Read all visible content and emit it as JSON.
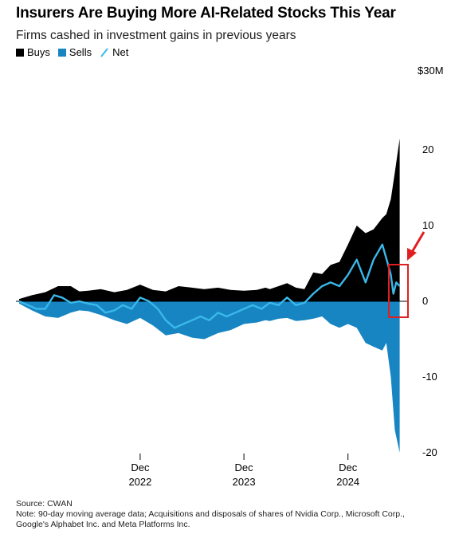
{
  "title": "Insurers Are Buying More AI-Related Stocks This Year",
  "subtitle": "Firms cashed in investment gains in previous years",
  "legend": [
    {
      "name": "Buys",
      "color": "#000000",
      "icon": "square-swatch"
    },
    {
      "name": "Sells",
      "color": "#1785c2",
      "icon": "square-swatch"
    },
    {
      "name": "Net",
      "color": "#3ab8ea",
      "icon": "slash-line"
    }
  ],
  "source": "Source: CWAN",
  "note": "Note: 90-day moving average data; Acquisitions and disposals of shares of Nvidia Corp., Microsoft Corp., Google's Alphabet Inc. and Meta Platforms Inc.",
  "chart_data": {
    "type": "area",
    "unit_label": "$30M",
    "ylim": [
      -21,
      30
    ],
    "yticks": [
      20,
      10,
      0,
      -10,
      -20
    ],
    "ytick_labels": [
      "20",
      "10",
      "0",
      "-10",
      "-20"
    ],
    "xlim": [
      "2021-10-01",
      "2025-06-05"
    ],
    "xticks": [
      {
        "date": "2022-12-01",
        "month": "Dec",
        "year": "2022"
      },
      {
        "date": "2023-12-01",
        "month": "Dec",
        "year": "2023"
      },
      {
        "date": "2024-12-01",
        "month": "Dec",
        "year": "2024"
      }
    ],
    "grid": false,
    "legend_position": "top-left",
    "series": [
      {
        "name": "Buys",
        "color": "#000000",
        "dates": [
          "2021-10-01",
          "2021-11-15",
          "2022-01-01",
          "2022-02-15",
          "2022-04-01",
          "2022-05-01",
          "2022-06-01",
          "2022-07-15",
          "2022-09-01",
          "2022-10-15",
          "2022-12-01",
          "2023-01-15",
          "2023-03-01",
          "2023-04-15",
          "2023-06-01",
          "2023-07-15",
          "2023-09-01",
          "2023-10-15",
          "2023-12-01",
          "2024-01-15",
          "2024-02-15",
          "2024-03-01",
          "2024-04-01",
          "2024-05-01",
          "2024-06-01",
          "2024-07-01",
          "2024-08-01",
          "2024-09-01",
          "2024-10-01",
          "2024-11-01",
          "2024-12-01",
          "2025-01-01",
          "2025-02-01",
          "2025-03-01",
          "2025-04-01",
          "2025-04-15",
          "2025-05-01",
          "2025-05-15",
          "2025-06-01"
        ],
        "values": [
          0.3,
          0.8,
          1.2,
          2.0,
          2.0,
          1.3,
          1.4,
          1.6,
          1.2,
          1.5,
          2.2,
          1.5,
          1.3,
          2.0,
          1.8,
          1.6,
          1.8,
          1.5,
          1.4,
          1.5,
          1.8,
          1.6,
          2.0,
          2.4,
          1.8,
          1.6,
          3.8,
          3.6,
          4.8,
          5.2,
          7.5,
          10.0,
          9.0,
          9.5,
          11.0,
          11.5,
          13.5,
          17.0,
          21.5
        ]
      },
      {
        "name": "Sells",
        "color": "#1785c2",
        "dates": [
          "2021-10-01",
          "2021-11-15",
          "2022-01-01",
          "2022-02-15",
          "2022-04-01",
          "2022-05-01",
          "2022-06-01",
          "2022-07-15",
          "2022-09-01",
          "2022-10-15",
          "2022-12-01",
          "2023-01-15",
          "2023-03-01",
          "2023-04-15",
          "2023-06-01",
          "2023-07-15",
          "2023-09-01",
          "2023-10-15",
          "2023-12-01",
          "2024-01-15",
          "2024-02-15",
          "2024-03-01",
          "2024-04-01",
          "2024-05-01",
          "2024-06-01",
          "2024-07-01",
          "2024-08-01",
          "2024-09-01",
          "2024-10-01",
          "2024-11-01",
          "2024-12-01",
          "2025-01-01",
          "2025-02-01",
          "2025-03-01",
          "2025-04-01",
          "2025-04-15",
          "2025-05-01",
          "2025-05-15",
          "2025-06-01"
        ],
        "values": [
          -0.3,
          -1.2,
          -2.0,
          -2.2,
          -1.5,
          -1.2,
          -1.3,
          -1.8,
          -2.5,
          -3.0,
          -2.2,
          -3.2,
          -4.5,
          -4.2,
          -4.8,
          -5.0,
          -4.2,
          -3.8,
          -3.0,
          -2.8,
          -2.5,
          -2.6,
          -2.3,
          -2.2,
          -2.6,
          -2.5,
          -2.3,
          -2.0,
          -3.0,
          -3.5,
          -3.0,
          -3.5,
          -5.5,
          -6.0,
          -6.5,
          -5.5,
          -10.0,
          -17.0,
          -20.0
        ]
      },
      {
        "name": "Net",
        "color": "#3ab8ea",
        "dates": [
          "2021-10-01",
          "2021-11-01",
          "2021-12-01",
          "2022-01-01",
          "2022-02-01",
          "2022-03-01",
          "2022-04-01",
          "2022-05-01",
          "2022-06-01",
          "2022-07-01",
          "2022-08-01",
          "2022-09-01",
          "2022-10-01",
          "2022-11-01",
          "2022-12-01",
          "2023-01-01",
          "2023-02-01",
          "2023-03-01",
          "2023-04-01",
          "2023-05-01",
          "2023-06-01",
          "2023-07-01",
          "2023-08-01",
          "2023-09-01",
          "2023-10-01",
          "2023-11-01",
          "2023-12-01",
          "2024-01-01",
          "2024-02-01",
          "2024-03-01",
          "2024-04-01",
          "2024-05-01",
          "2024-06-01",
          "2024-07-01",
          "2024-08-01",
          "2024-09-01",
          "2024-10-01",
          "2024-11-01",
          "2024-12-01",
          "2025-01-01",
          "2025-02-01",
          "2025-03-01",
          "2025-04-01",
          "2025-04-20",
          "2025-05-01",
          "2025-05-10",
          "2025-05-20",
          "2025-06-01"
        ],
        "values": [
          0.0,
          -0.5,
          -1.0,
          -1.0,
          0.8,
          0.5,
          -0.2,
          0.0,
          -0.3,
          -0.5,
          -1.5,
          -1.2,
          -0.5,
          -1.0,
          0.5,
          0.0,
          -1.0,
          -2.5,
          -3.5,
          -3.0,
          -2.5,
          -2.0,
          -2.5,
          -1.5,
          -2.0,
          -1.5,
          -1.0,
          -0.5,
          -1.0,
          -0.2,
          -0.5,
          0.5,
          -0.5,
          -0.2,
          1.0,
          2.0,
          2.5,
          2.0,
          3.5,
          5.5,
          2.5,
          5.5,
          7.5,
          5.0,
          3.5,
          1.0,
          2.5,
          2.0
        ]
      }
    ]
  }
}
